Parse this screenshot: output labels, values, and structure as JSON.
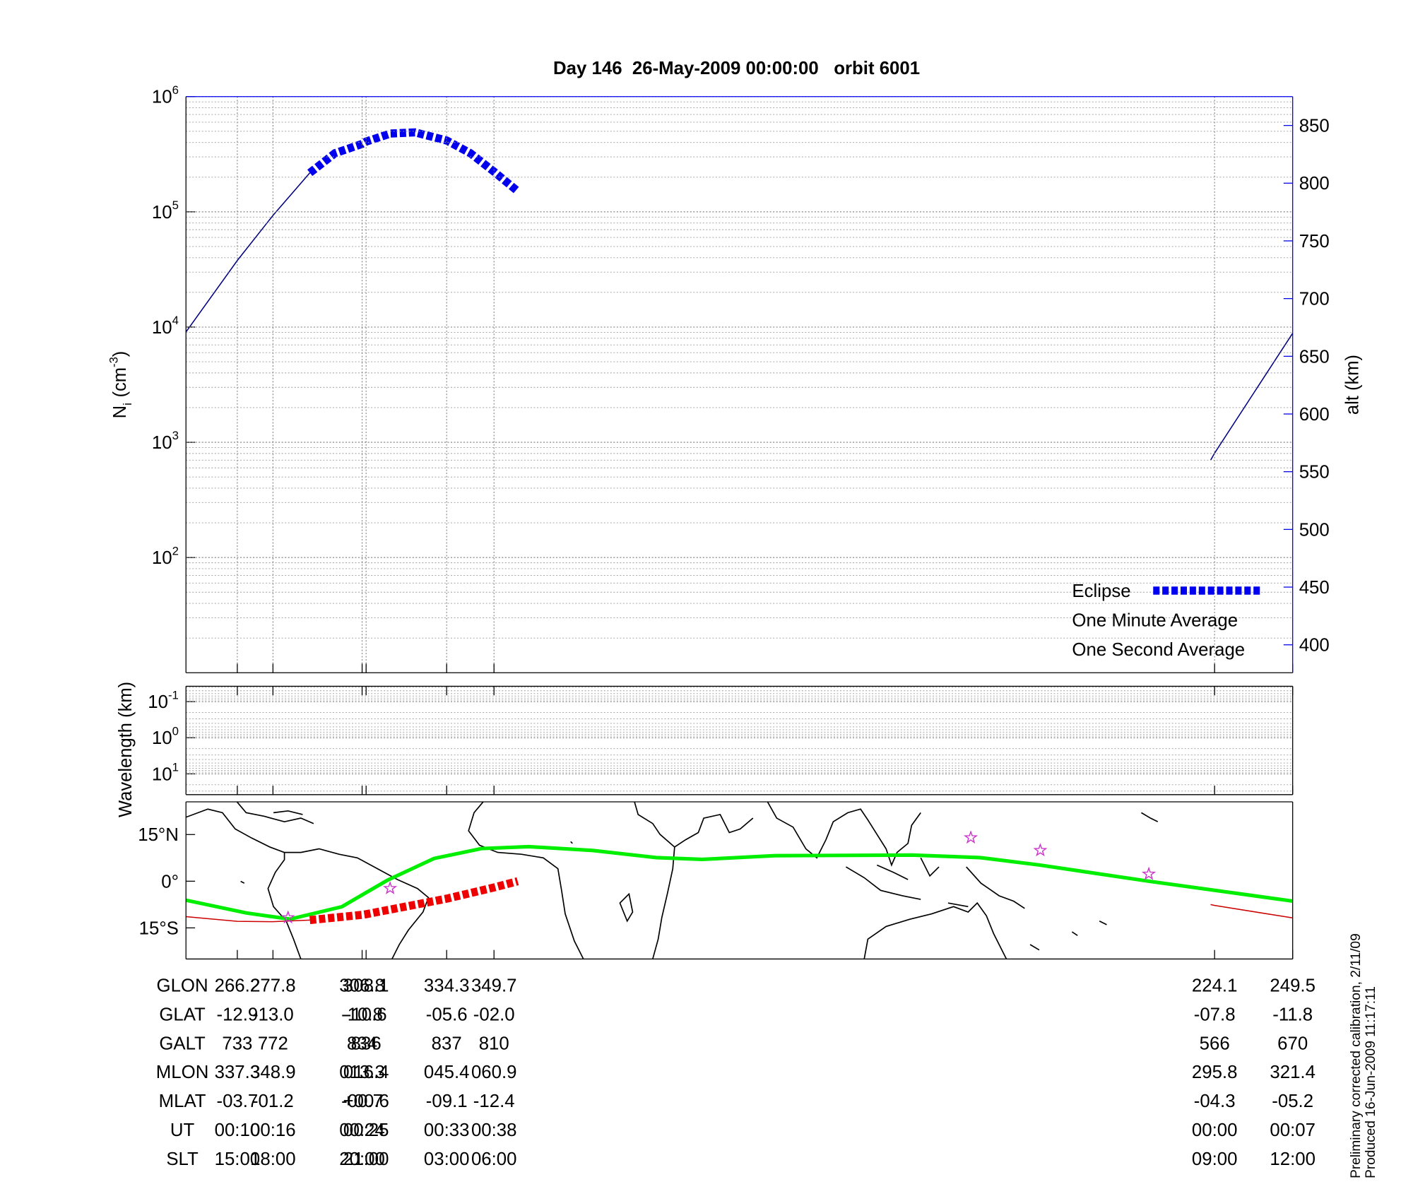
{
  "chart_data": [
    {
      "type": "line",
      "title": "Day 146  26-May-2009 00:00:00   orbit 6001",
      "ylabel": {
        "symbol": "N",
        "subscript": "i",
        "unit": "(cm",
        "unit_exponent": "-3",
        "unit_close": ")"
      },
      "y2label": "alt (km)",
      "log_y": true,
      "ylim": [
        10,
        1000000
      ],
      "yticks": [
        {
          "value": 100,
          "label": "10",
          "exponent": "2"
        },
        {
          "value": 1000,
          "label": "10",
          "exponent": "3"
        },
        {
          "value": 10000,
          "label": "10",
          "exponent": "4"
        },
        {
          "value": 100000,
          "label": "10",
          "exponent": "5"
        },
        {
          "value": 1000000,
          "label": "10",
          "exponent": "6"
        }
      ],
      "y2lim": [
        375.8,
        875
      ],
      "y2ticks": [
        400,
        450,
        500,
        550,
        600,
        650,
        700,
        750,
        800,
        850
      ],
      "y2color": "#0000ee",
      "xlim": [
        249.5,
        609.5
      ],
      "xticks": [
        266.2,
        277.8,
        306.8,
        308.1,
        334.3,
        349.7,
        584.1,
        609.5
      ],
      "grid": true,
      "xgrid": true,
      "series": [
        {
          "x": [
            249.5,
            266.2,
            277.8,
            289.8,
            null,
            582.8,
            584.1,
            609.5
          ],
          "values": [
            671,
            733,
            772,
            809,
            null,
            560,
            566,
            670
          ],
          "axis": "y2",
          "color": "#000080"
        },
        {
          "name": "Eclipse",
          "x": [
            289.8,
            298,
            306.8,
            308.1,
            316,
            324,
            334.3,
            342,
            349.7,
            357.4
          ],
          "values": [
            809,
            826,
            834,
            836,
            843,
            844,
            837,
            826,
            810,
            793
          ],
          "axis": "y2",
          "color": "#0000ee",
          "style": "thick-dash"
        }
      ],
      "legend": {
        "position": "lower right",
        "entries": [
          {
            "label": "Eclipse",
            "color": "#0000ee",
            "marker": "thick-dash"
          },
          {
            "label": "One Minute Average",
            "color": "#000000"
          },
          {
            "label": "One Second Average",
            "color": "#00dd00"
          }
        ]
      }
    },
    {
      "type": "line",
      "ylabel": "Wavelength (km)",
      "log_y": true,
      "y_inverted": true,
      "ylim": [
        0.0376,
        37.6
      ],
      "yticks": [
        {
          "value": 0.1,
          "label": "10",
          "exponent": "-1"
        },
        {
          "value": 1,
          "label": "10",
          "exponent": "0"
        },
        {
          "value": 10,
          "label": "10",
          "exponent": "1"
        }
      ],
      "xlim": [
        249.5,
        609.5
      ],
      "xticks": [
        266.2,
        277.8,
        306.8,
        308.1,
        334.3,
        349.7,
        584.1,
        609.5
      ],
      "grid": true,
      "xgrid": false,
      "series": []
    },
    {
      "type": "map",
      "ylim": [
        -25,
        25.5
      ],
      "yticks": [
        {
          "value": 15,
          "label": "15°N"
        },
        {
          "value": 0,
          "label": "0°"
        },
        {
          "value": -15,
          "label": "15°S"
        }
      ],
      "xlim": [
        249.5,
        609.5
      ],
      "xticks": [
        266.2,
        277.8,
        306.8,
        308.1,
        334.3,
        349.7,
        584.1,
        609.5
      ],
      "grid": false,
      "xgrid": false,
      "series": [
        {
          "x": [
            249.5,
            269.1,
            283.3,
            300.2,
            315.0,
            330.2,
            345.6,
            361.0,
            381.8,
            402.5,
            417.4,
            441.1,
            485.6,
            507.8,
            527.1,
            562.7,
            609.5
          ],
          "values": [
            -6.1,
            -10.2,
            -12.2,
            -8.2,
            0.3,
            7.3,
            10.5,
            11.1,
            9.9,
            7.6,
            7.0,
            8.2,
            8.4,
            7.6,
            5.2,
            0.0,
            -6.4
          ],
          "color": "#00ee00",
          "style": "thick"
        },
        {
          "x": [
            249.5,
            266.2,
            277.8,
            289.8,
            null,
            582.8,
            584.1,
            609.5
          ],
          "values": [
            -11.4,
            -12.9,
            -13.0,
            -12.5,
            null,
            -7.5,
            -7.8,
            -11.8
          ],
          "color": "#cc0000"
        },
        {
          "x": [
            289.8,
            306.8,
            308.1,
            334.3,
            349.7,
            357.4
          ],
          "values": [
            -12.5,
            -10.8,
            -10.6,
            -5.6,
            -2.0,
            0.0
          ],
          "color": "#ee0000",
          "style": "thick-dash"
        }
      ],
      "markers": {
        "x": [
          282.7,
          315.9,
          504.8,
          527.4,
          562.7
        ],
        "values": [
          -11.7,
          -2.3,
          14.0,
          9.9,
          2.3
        ],
        "color": "#cc33cc"
      }
    }
  ],
  "table": {
    "rows": [
      {
        "label": "GLON",
        "values": [
          "266.2",
          "277.8",
          "306.8",
          "308.1",
          "334.3",
          "349.7",
          "224.1",
          "249.5"
        ]
      },
      {
        "label": "GLAT",
        "values": [
          "-12.9",
          "-13.0",
          "-10.8",
          "-10.6",
          "-05.6",
          "-02.0",
          "-07.8",
          "-11.8"
        ]
      },
      {
        "label": "GALT",
        "values": [
          "733",
          "772",
          "834",
          "836",
          "837",
          "810",
          "566",
          "670"
        ]
      },
      {
        "label": "MLON",
        "values": [
          "337.3",
          "348.9",
          "013.3",
          "016.4",
          "045.4",
          "060.9",
          "295.8",
          "321.4"
        ]
      },
      {
        "label": "MLAT",
        "values": [
          "-03.7",
          "-01.2",
          "-00.7",
          "+00.6",
          "-09.1",
          "-12.4",
          "-04.3",
          "-05.2"
        ]
      },
      {
        "label": "UT",
        "values": [
          "00:10",
          "00:16",
          "00:24",
          "00:25",
          "00:33",
          "00:38",
          "00:00",
          "00:07"
        ]
      },
      {
        "label": "SLT",
        "values": [
          "15:00",
          "18:00",
          "20:00",
          "21:00",
          "03:00",
          "06:00",
          "09:00",
          "12:00"
        ]
      }
    ]
  },
  "footer": [
    "Preliminary corrected calibration, 2/11/09",
    "Produced 16-Jun-2009 11:17:11"
  ]
}
